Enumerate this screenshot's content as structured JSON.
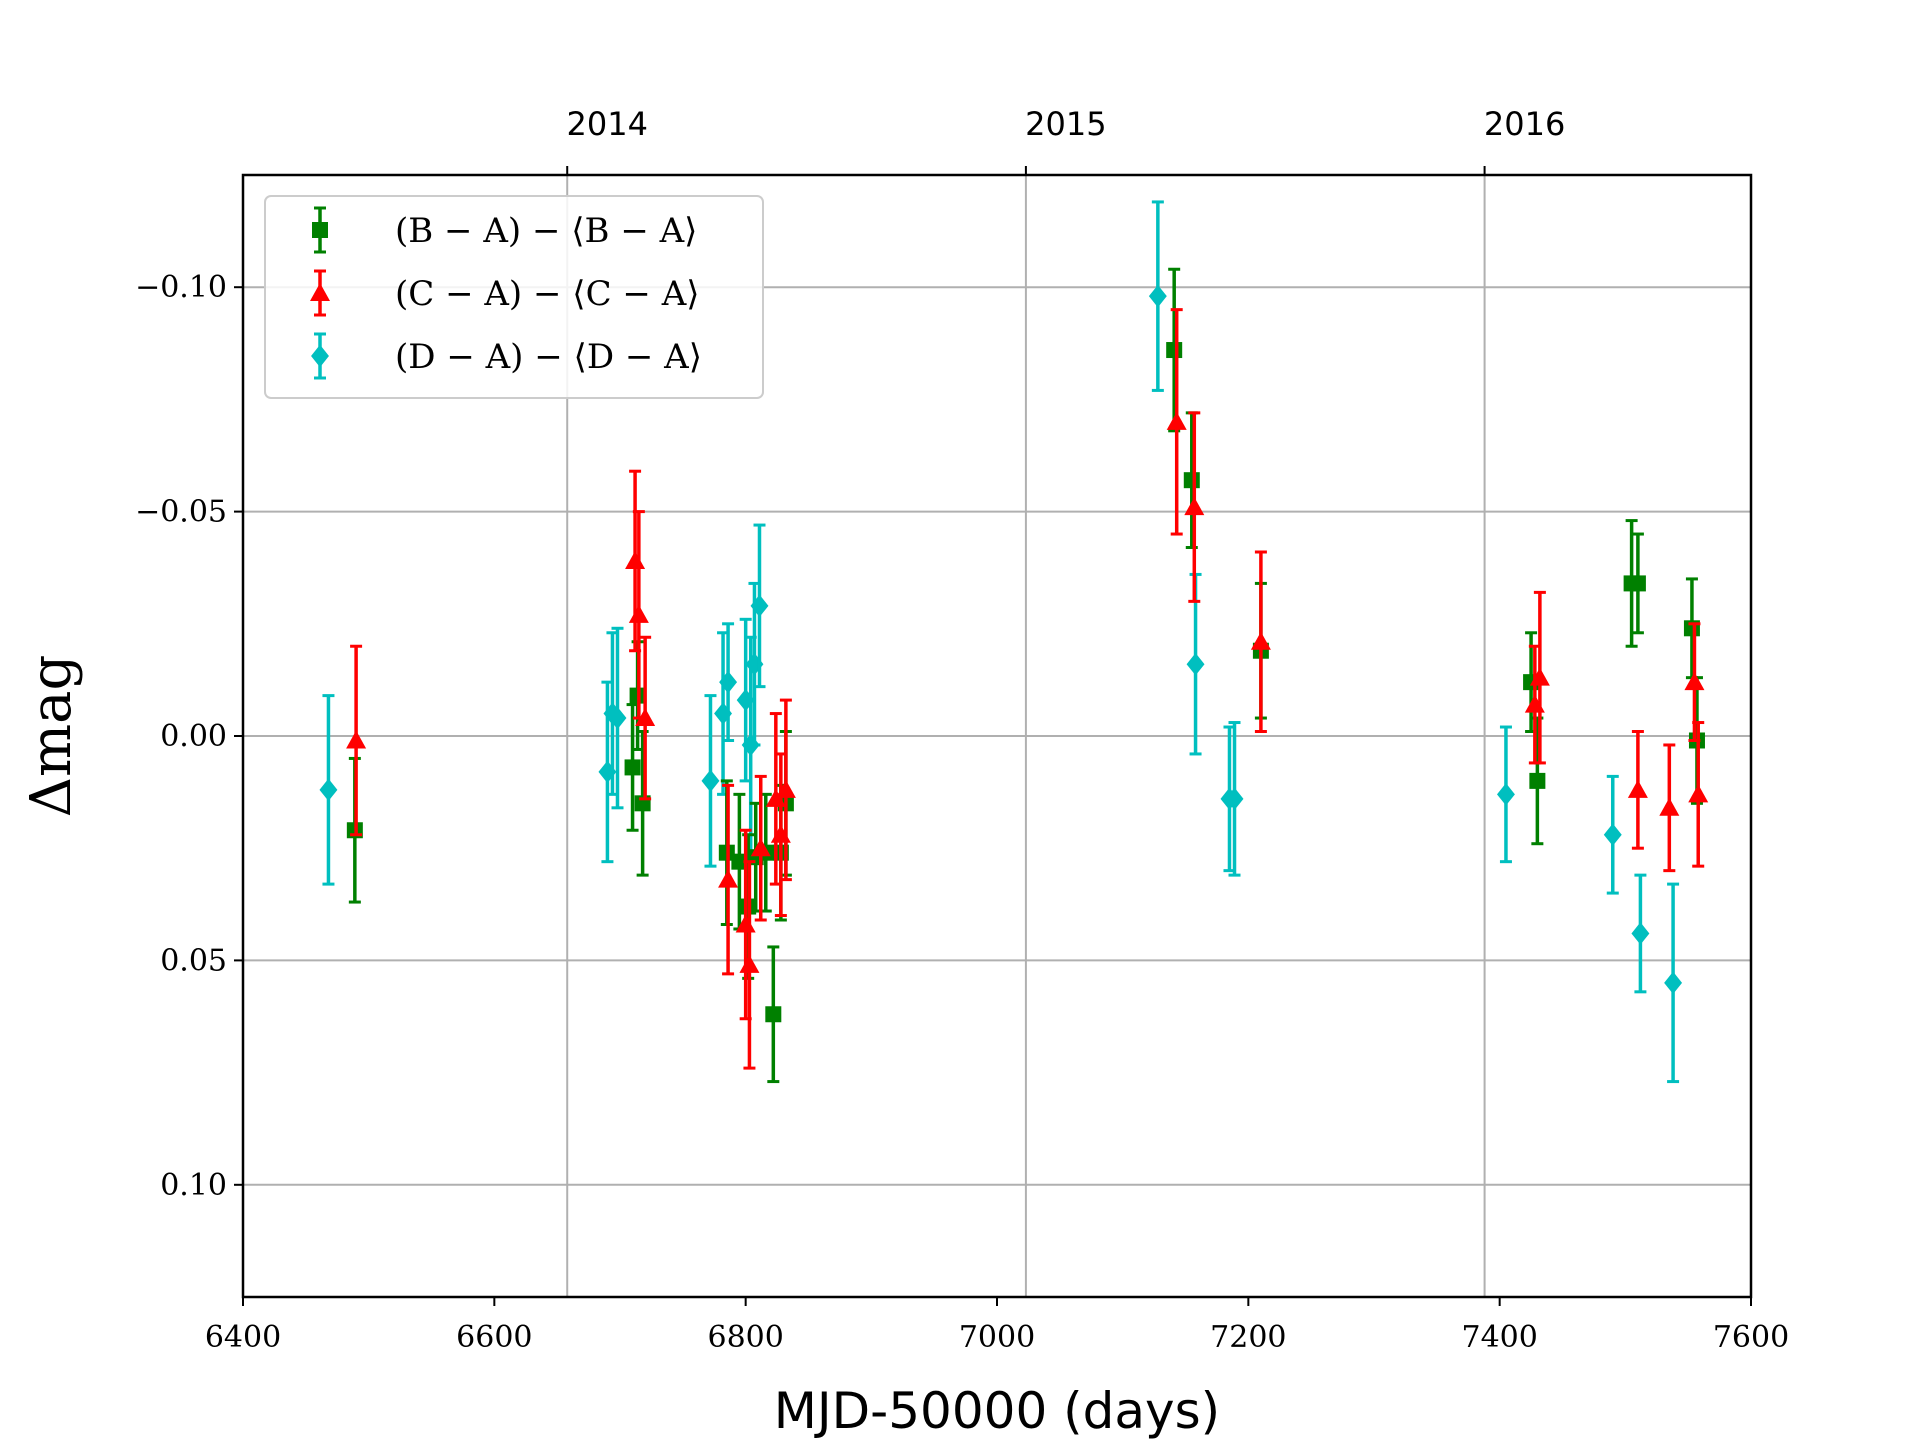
{
  "chart_data": {
    "type": "scatter",
    "xlabel": "MJD-50000 (days)",
    "ylabel": "Δmag",
    "xlim": [
      6400,
      7600
    ],
    "ylim": [
      0.125,
      -0.125
    ],
    "y_inverted": true,
    "x_ticks": [
      6400,
      6600,
      6800,
      7000,
      7200,
      7400,
      7600
    ],
    "x_tick_labels": [
      "6400",
      "6600",
      "6800",
      "7000",
      "7200",
      "7400",
      "7600"
    ],
    "y_ticks": [
      -0.1,
      -0.05,
      0.0,
      0.05,
      0.1
    ],
    "y_tick_labels": [
      "−0.10",
      "−0.05",
      "0.00",
      "0.05",
      "0.10"
    ],
    "year_ticks": [
      {
        "label": "2014",
        "mjd": 6658
      },
      {
        "label": "2015",
        "mjd": 7023
      },
      {
        "label": "2016",
        "mjd": 7388
      }
    ],
    "grid": true,
    "legend_position": "top-left",
    "series": [
      {
        "name": "(B − A) − ⟨B − A⟩",
        "color": "#008000",
        "marker": "square",
        "points": [
          {
            "x": 6489,
            "y": 0.021,
            "err": 0.016
          },
          {
            "x": 6710,
            "y": 0.007,
            "err": 0.014
          },
          {
            "x": 6714,
            "y": -0.009,
            "err": 0.012
          },
          {
            "x": 6718,
            "y": 0.015,
            "err": 0.016
          },
          {
            "x": 6785,
            "y": 0.026,
            "err": 0.016
          },
          {
            "x": 6795,
            "y": 0.028,
            "err": 0.015
          },
          {
            "x": 6802,
            "y": 0.038,
            "err": 0.016
          },
          {
            "x": 6808,
            "y": 0.027,
            "err": 0.012
          },
          {
            "x": 6816,
            "y": 0.026,
            "err": 0.013
          },
          {
            "x": 6822,
            "y": 0.062,
            "err": 0.015
          },
          {
            "x": 6828,
            "y": 0.026,
            "err": 0.015
          },
          {
            "x": 6832,
            "y": 0.015,
            "err": 0.016
          },
          {
            "x": 7141,
            "y": -0.086,
            "err": 0.018
          },
          {
            "x": 7155,
            "y": -0.057,
            "err": 0.015
          },
          {
            "x": 7210,
            "y": -0.019,
            "err": 0.015
          },
          {
            "x": 7425,
            "y": -0.012,
            "err": 0.011
          },
          {
            "x": 7430,
            "y": 0.01,
            "err": 0.014
          },
          {
            "x": 7505,
            "y": -0.034,
            "err": 0.014
          },
          {
            "x": 7510,
            "y": -0.034,
            "err": 0.011
          },
          {
            "x": 7553,
            "y": -0.024,
            "err": 0.011
          },
          {
            "x": 7557,
            "y": 0.001,
            "err": 0.014
          }
        ]
      },
      {
        "name": "(C − A) − ⟨C − A⟩",
        "color": "#ff0000",
        "marker": "triangle",
        "points": [
          {
            "x": 6490,
            "y": 0.001,
            "err": 0.021
          },
          {
            "x": 6712,
            "y": -0.039,
            "err": 0.02
          },
          {
            "x": 6715,
            "y": -0.027,
            "err": 0.023
          },
          {
            "x": 6720,
            "y": -0.004,
            "err": 0.018
          },
          {
            "x": 6786,
            "y": 0.032,
            "err": 0.021
          },
          {
            "x": 6800,
            "y": 0.042,
            "err": 0.021
          },
          {
            "x": 6803,
            "y": 0.051,
            "err": 0.023
          },
          {
            "x": 6812,
            "y": 0.025,
            "err": 0.016
          },
          {
            "x": 6824,
            "y": 0.014,
            "err": 0.019
          },
          {
            "x": 6828,
            "y": 0.022,
            "err": 0.018
          },
          {
            "x": 6832,
            "y": 0.012,
            "err": 0.02
          },
          {
            "x": 7143,
            "y": -0.07,
            "err": 0.025
          },
          {
            "x": 7157,
            "y": -0.051,
            "err": 0.021
          },
          {
            "x": 7210,
            "y": -0.021,
            "err": 0.02
          },
          {
            "x": 7428,
            "y": -0.007,
            "err": 0.013
          },
          {
            "x": 7432,
            "y": -0.013,
            "err": 0.019
          },
          {
            "x": 7510,
            "y": 0.012,
            "err": 0.013
          },
          {
            "x": 7535,
            "y": 0.016,
            "err": 0.014
          },
          {
            "x": 7555,
            "y": -0.012,
            "err": 0.013
          },
          {
            "x": 7558,
            "y": 0.013,
            "err": 0.016
          }
        ]
      },
      {
        "name": "(D − A) − ⟨D − A⟩",
        "color": "#00bfbf",
        "marker": "diamond",
        "points": [
          {
            "x": 6468,
            "y": 0.012,
            "err": 0.021
          },
          {
            "x": 6690,
            "y": 0.008,
            "err": 0.02
          },
          {
            "x": 6694,
            "y": -0.005,
            "err": 0.018
          },
          {
            "x": 6698,
            "y": -0.004,
            "err": 0.02
          },
          {
            "x": 6772,
            "y": 0.01,
            "err": 0.019
          },
          {
            "x": 6782,
            "y": -0.005,
            "err": 0.018
          },
          {
            "x": 6786,
            "y": -0.012,
            "err": 0.013
          },
          {
            "x": 6800,
            "y": -0.008,
            "err": 0.018
          },
          {
            "x": 6804,
            "y": 0.002,
            "err": 0.024
          },
          {
            "x": 6807,
            "y": -0.016,
            "err": 0.018
          },
          {
            "x": 6811,
            "y": -0.029,
            "err": 0.018
          },
          {
            "x": 7128,
            "y": -0.098,
            "err": 0.021
          },
          {
            "x": 7158,
            "y": -0.016,
            "err": 0.02
          },
          {
            "x": 7185,
            "y": 0.014,
            "err": 0.016
          },
          {
            "x": 7189,
            "y": 0.014,
            "err": 0.017
          },
          {
            "x": 7405,
            "y": 0.013,
            "err": 0.015
          },
          {
            "x": 7490,
            "y": 0.022,
            "err": 0.013
          },
          {
            "x": 7512,
            "y": 0.044,
            "err": 0.013
          },
          {
            "x": 7538,
            "y": 0.055,
            "err": 0.022
          }
        ]
      }
    ]
  }
}
